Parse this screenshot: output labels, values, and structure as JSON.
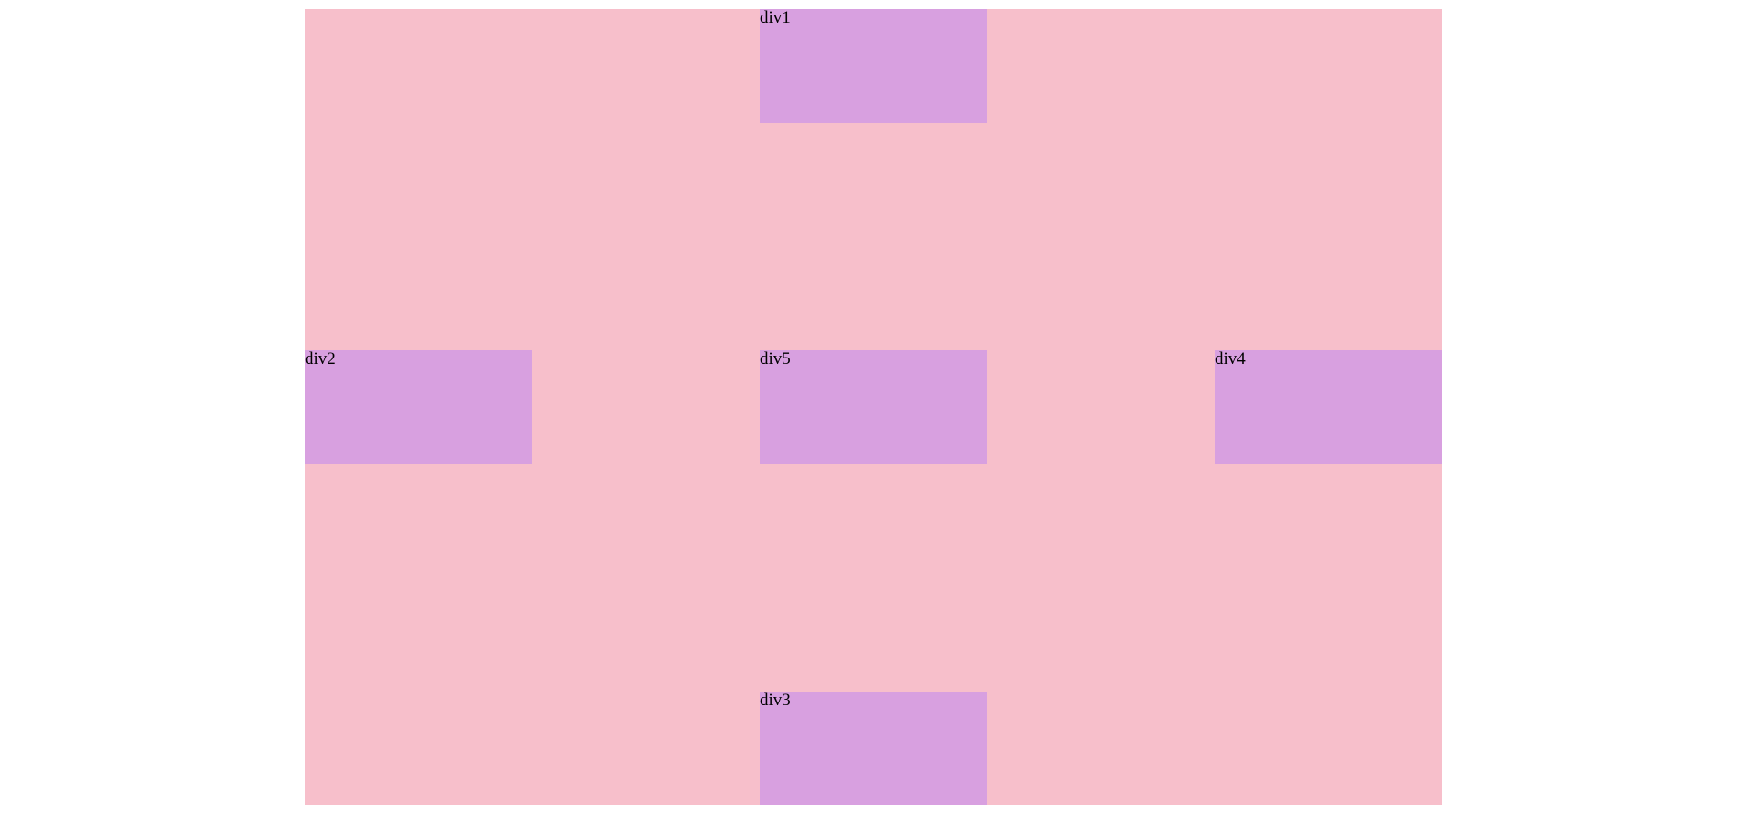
{
  "colors": {
    "container": "#f7bfcb",
    "box": "#d8a0e0"
  },
  "boxes": {
    "div1": "div1",
    "div2": "div2",
    "div3": "div3",
    "div4": "div4",
    "div5": "div5"
  }
}
